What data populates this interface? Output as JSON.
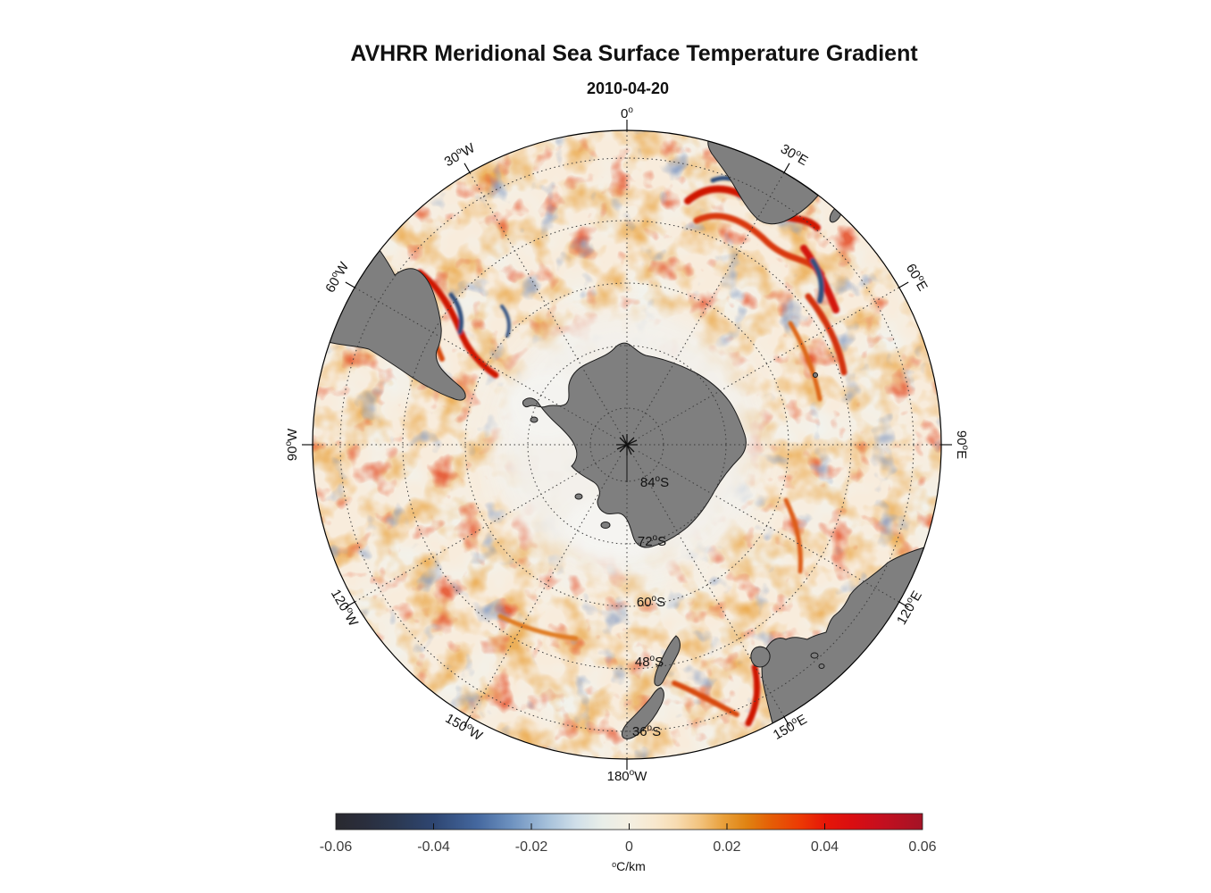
{
  "figure": {
    "title": "AVHRR Meridional Sea Surface Temperature Gradient",
    "subtitle": "2010-04-20"
  },
  "map": {
    "projection": "south polar stereographic",
    "lon_labels": [
      {
        "num": "0",
        "deg": "o",
        "dir": ""
      },
      {
        "num": "30",
        "deg": "o",
        "dir": "E"
      },
      {
        "num": "60",
        "deg": "o",
        "dir": "E"
      },
      {
        "num": "90",
        "deg": "o",
        "dir": "E"
      },
      {
        "num": "120",
        "deg": "o",
        "dir": "E"
      },
      {
        "num": "150",
        "deg": "o",
        "dir": "E"
      },
      {
        "num": "180",
        "deg": "o",
        "dir": "W"
      },
      {
        "num": "150",
        "deg": "o",
        "dir": "W"
      },
      {
        "num": "120",
        "deg": "o",
        "dir": "W"
      },
      {
        "num": "90",
        "deg": "o",
        "dir": "W"
      },
      {
        "num": "60",
        "deg": "o",
        "dir": "W"
      },
      {
        "num": "30",
        "deg": "o",
        "dir": "W"
      }
    ],
    "lat_labels": [
      {
        "num": "84",
        "deg": "o",
        "dir": "S"
      },
      {
        "num": "72",
        "deg": "o",
        "dir": "S"
      },
      {
        "num": "60",
        "deg": "o",
        "dir": "S"
      },
      {
        "num": "48",
        "deg": "o",
        "dir": "S"
      },
      {
        "num": "36",
        "deg": "o",
        "dir": "S"
      }
    ],
    "colors": {
      "land": "#7f7f7f",
      "land_outline": "#1a1a1a",
      "ice": "#f3f2ee",
      "ocean_base": "#f8ecdc",
      "grid": "#3a3a3a"
    }
  },
  "colorbar": {
    "ticks": [
      "-0.06",
      "-0.04",
      "-0.02",
      "0",
      "0.02",
      "0.04",
      "0.06"
    ],
    "unit_sup": "o",
    "unit_main": "C/km",
    "stops": [
      [
        0.0,
        "#29292f"
      ],
      [
        0.05,
        "#2a2e3d"
      ],
      [
        0.1,
        "#2b3850"
      ],
      [
        0.167,
        "#2e4672"
      ],
      [
        0.24,
        "#44679e"
      ],
      [
        0.3,
        "#6e92c0"
      ],
      [
        0.36,
        "#a5c0da"
      ],
      [
        0.41,
        "#d0dfe9"
      ],
      [
        0.455,
        "#e9eee8"
      ],
      [
        0.5,
        "#f4efe2"
      ],
      [
        0.545,
        "#f8e8cd"
      ],
      [
        0.58,
        "#f7dcb2"
      ],
      [
        0.62,
        "#f2c37e"
      ],
      [
        0.66,
        "#e9a03b"
      ],
      [
        0.7,
        "#e08312"
      ],
      [
        0.74,
        "#e55f06"
      ],
      [
        0.79,
        "#ec3a04"
      ],
      [
        0.835,
        "#e61608"
      ],
      [
        0.88,
        "#da0e11"
      ],
      [
        0.93,
        "#c50f1f"
      ],
      [
        1.0,
        "#a41326"
      ]
    ]
  },
  "chart_data": {
    "type": "heatmap",
    "title": "AVHRR Meridional Sea Surface Temperature Gradient",
    "date": "2010-04-20",
    "variable": "Meridional sea surface temperature gradient from AVHRR",
    "units": "°C/km",
    "projection": "South polar stereographic centered on Antarctica",
    "map_extent_latitude_S": [
      90,
      30
    ],
    "lat_gridlines_deg_S": [
      84,
      72,
      60,
      48,
      36
    ],
    "lon_gridlines_deg": [
      0,
      30,
      60,
      90,
      120,
      150,
      180,
      210,
      240,
      270,
      300,
      330
    ],
    "colorbar_range": [
      -0.06,
      0.06
    ],
    "colorbar_ticks": [
      -0.06,
      -0.04,
      -0.02,
      0,
      0.02,
      0.04,
      0.06
    ],
    "colormap": "diverging: dark charcoal > navy blue > light blue > off-white > orange > red > dark crimson",
    "legend_position": "horizontal colorbar below map",
    "land_masses": [
      "Antarctica (center, gray)",
      "Patagonia / southern South America (upper left edge)",
      "Southern Africa (top right edge)",
      "Australia with Tasmania (lower right edge)",
      "New Zealand (bottom center-right)"
    ],
    "notable_features": [
      "Strong red gradient bands of the Agulhas Return Current south of Africa",
      "Brazil-Malvinas Confluence eddies east of Patagonia",
      "Antarctic Circumpolar Current frontal streaks around 40-55S",
      "Pale low-gradient sea-ice zone surrounding Antarctica",
      "Mottled orange mesoscale eddy field across the Southern Ocean"
    ]
  }
}
